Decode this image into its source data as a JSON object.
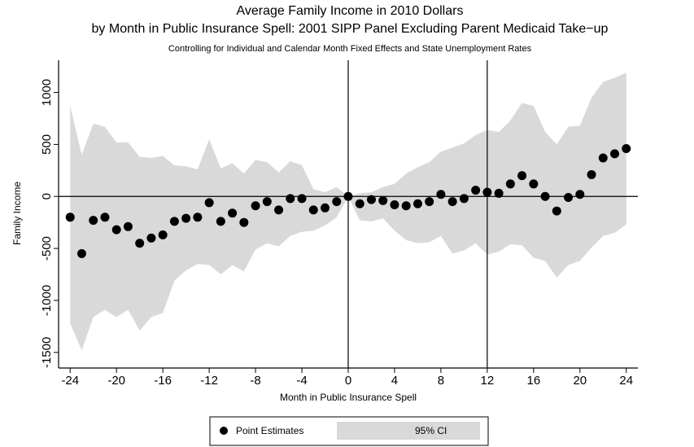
{
  "chart_data": {
    "type": "scatter",
    "title": "Average Family Income in 2010 Dollars",
    "title2": "by Month in Public Insurance Spell: 2001 SIPP Panel Excluding Parent Medicaid Take−up",
    "subtitle": "Controlling for Individual and Calendar Month Fixed Effects and State Unemployment Rates",
    "x_label": "Month in Public Insurance Spell",
    "y_label": "Family Income",
    "x": [
      -24,
      -23,
      -22,
      -21,
      -20,
      -19,
      -18,
      -17,
      -16,
      -15,
      -14,
      -13,
      -12,
      -11,
      -10,
      -9,
      -8,
      -7,
      -6,
      -5,
      -4,
      -3,
      -2,
      -1,
      0,
      1,
      2,
      3,
      4,
      5,
      6,
      7,
      8,
      9,
      10,
      11,
      12,
      13,
      14,
      15,
      16,
      17,
      18,
      19,
      20,
      21,
      22,
      23,
      24
    ],
    "series": [
      {
        "name": "Point Estimates",
        "color": "#000000",
        "values": [
          -200,
          -550,
          -230,
          -200,
          -320,
          -290,
          -450,
          -400,
          -370,
          -240,
          -210,
          -200,
          -60,
          -240,
          -160,
          -250,
          -90,
          -50,
          -130,
          -20,
          -20,
          -130,
          -110,
          -50,
          0,
          -70,
          -30,
          -40,
          -80,
          -90,
          -70,
          -50,
          20,
          -50,
          -20,
          60,
          40,
          30,
          120,
          200,
          120,
          0,
          -140,
          -10,
          20,
          210,
          370,
          410,
          460
        ]
      },
      {
        "name": "95% CI",
        "color": "#d9d9d9",
        "upper": [
          870,
          400,
          700,
          670,
          520,
          520,
          380,
          370,
          390,
          300,
          290,
          260,
          550,
          270,
          320,
          220,
          350,
          330,
          230,
          340,
          300,
          70,
          40,
          90,
          0,
          30,
          40,
          90,
          120,
          220,
          280,
          330,
          430,
          470,
          510,
          590,
          640,
          620,
          730,
          900,
          870,
          620,
          500,
          670,
          680,
          950,
          1100,
          1140,
          1190
        ],
        "lower": [
          -1220,
          -1480,
          -1160,
          -1090,
          -1160,
          -1090,
          -1290,
          -1160,
          -1120,
          -810,
          -710,
          -650,
          -660,
          -750,
          -660,
          -720,
          -510,
          -450,
          -480,
          -380,
          -340,
          -330,
          -280,
          -200,
          0,
          -230,
          -240,
          -210,
          -330,
          -420,
          -450,
          -440,
          -380,
          -550,
          -520,
          -450,
          -560,
          -530,
          -460,
          -470,
          -590,
          -620,
          -780,
          -660,
          -620,
          -490,
          -380,
          -350,
          -270
        ]
      }
    ],
    "xlim": [
      -25,
      25
    ],
    "ylim": [
      -1650,
      1200
    ],
    "xticks": [
      -24,
      -20,
      -16,
      -12,
      -8,
      -4,
      0,
      4,
      8,
      12,
      16,
      20,
      24
    ],
    "yticks": [
      -1500,
      -1000,
      -500,
      0,
      500,
      1000
    ],
    "vlines": [
      0,
      12
    ],
    "hlines": [
      0
    ]
  }
}
